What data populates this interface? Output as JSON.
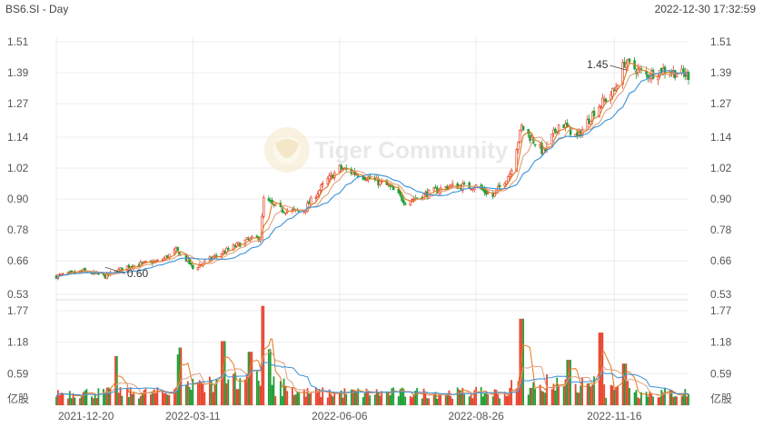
{
  "header": {
    "title": "BS6.SI - Day",
    "timestamp": "2022-12-30 17:32:59"
  },
  "watermark": {
    "text": "Tiger Community"
  },
  "colors": {
    "up": "#e8432e",
    "down": "#1f9e35",
    "ma_fast": "#e07a1e",
    "ma_mid": "#e0a080",
    "ma_slow": "#3a92d8",
    "grid": "#ececec"
  },
  "chart_data": [
    {
      "type": "candlestick",
      "name": "price",
      "yticks": [
        "1.51",
        "1.39",
        "1.27",
        "1.14",
        "1.02",
        "0.90",
        "0.78",
        "0.66",
        "0.53"
      ],
      "ylim": [
        0.53,
        1.51
      ],
      "annotations": [
        {
          "label": "1.45",
          "date": "2022-11-22",
          "value": 1.45
        },
        {
          "label": "0.60",
          "date": "2022-01-18",
          "value": 0.6
        }
      ],
      "anchors": [
        {
          "date": "2021-12-20",
          "close": 0.6
        },
        {
          "date": "2022-01-05",
          "close": 0.62
        },
        {
          "date": "2022-01-18",
          "close": 0.6
        },
        {
          "date": "2022-02-01",
          "close": 0.64
        },
        {
          "date": "2022-02-20",
          "close": 0.66
        },
        {
          "date": "2022-03-01",
          "close": 0.7
        },
        {
          "date": "2022-03-08",
          "close": 0.66
        },
        {
          "date": "2022-03-11",
          "close": 0.63
        },
        {
          "date": "2022-03-25",
          "close": 0.68
        },
        {
          "date": "2022-04-12",
          "close": 0.74
        },
        {
          "date": "2022-04-20",
          "close": 0.75
        },
        {
          "date": "2022-04-22",
          "close": 0.9
        },
        {
          "date": "2022-05-01",
          "close": 0.86
        },
        {
          "date": "2022-05-15",
          "close": 0.85
        },
        {
          "date": "2022-05-28",
          "close": 0.96
        },
        {
          "date": "2022-06-06",
          "close": 1.02
        },
        {
          "date": "2022-06-20",
          "close": 0.99
        },
        {
          "date": "2022-07-05",
          "close": 0.95
        },
        {
          "date": "2022-07-15",
          "close": 0.89
        },
        {
          "date": "2022-08-01",
          "close": 0.93
        },
        {
          "date": "2022-08-10",
          "close": 0.95
        },
        {
          "date": "2022-08-26",
          "close": 0.95
        },
        {
          "date": "2022-09-05",
          "close": 0.91
        },
        {
          "date": "2022-09-15",
          "close": 1.0
        },
        {
          "date": "2022-09-22",
          "close": 1.18
        },
        {
          "date": "2022-10-05",
          "close": 1.08
        },
        {
          "date": "2022-10-15",
          "close": 1.2
        },
        {
          "date": "2022-10-25",
          "close": 1.14
        },
        {
          "date": "2022-11-05",
          "close": 1.25
        },
        {
          "date": "2022-11-16",
          "close": 1.32
        },
        {
          "date": "2022-11-22",
          "close": 1.43
        },
        {
          "date": "2022-12-05",
          "close": 1.38
        },
        {
          "date": "2022-12-15",
          "close": 1.4
        },
        {
          "date": "2022-12-30",
          "close": 1.38
        }
      ]
    },
    {
      "type": "bar",
      "name": "volume",
      "unit": "亿股",
      "yticks": [
        "1.77",
        "1.18",
        "0.59"
      ],
      "ylim": [
        0,
        1.77
      ],
      "xticks": [
        "2021-12-20",
        "2022-03-11",
        "2022-06-06",
        "2022-08-26",
        "2022-11-16"
      ],
      "spikes": [
        {
          "date": "2022-01-24",
          "value": 0.92
        },
        {
          "date": "2022-03-03",
          "value": 0.95
        },
        {
          "date": "2022-03-04",
          "value": 1.08
        },
        {
          "date": "2022-03-29",
          "value": 1.2
        },
        {
          "date": "2022-04-14",
          "value": 1.0
        },
        {
          "date": "2022-04-22",
          "value": 1.86
        },
        {
          "date": "2022-04-25",
          "value": 1.05
        },
        {
          "date": "2022-09-22",
          "value": 1.62
        },
        {
          "date": "2022-10-20",
          "value": 0.85
        },
        {
          "date": "2022-11-08",
          "value": 1.36
        },
        {
          "date": "2022-11-22",
          "value": 0.78
        }
      ]
    }
  ]
}
